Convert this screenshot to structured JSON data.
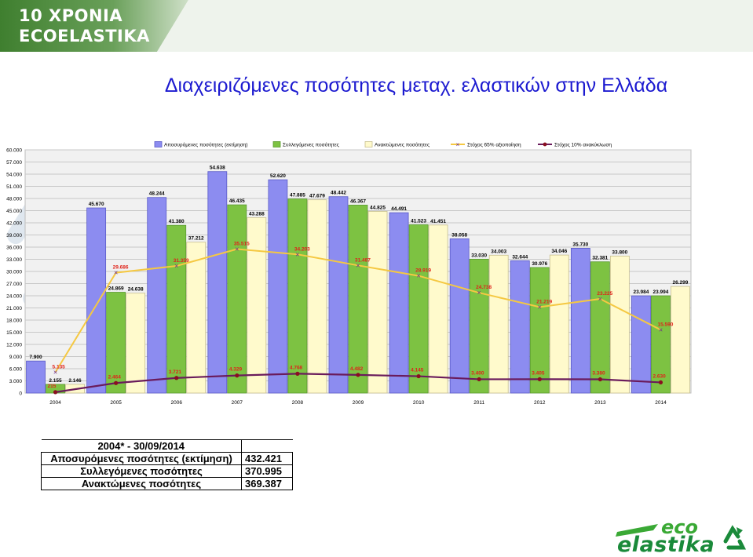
{
  "brand": {
    "line1": "10 ΧΡΟΝΙΑ",
    "line2": "ECOELASTIKA"
  },
  "title": "Διαχειριζόμενες ποσότητες μεταχ. ελαστικών στην Ελλάδα",
  "colors": {
    "placed": "#8c8cf0",
    "collected": "#7dc242",
    "recovered": "#fffacc",
    "target65": "#f5c842",
    "target10": "#6a1b5c",
    "title": "#1c1ad0",
    "banner": "#4a8a3a"
  },
  "chart_data": {
    "type": "bar",
    "categories": [
      "2004",
      "2005",
      "2006",
      "2007",
      "2008",
      "2009",
      "2010",
      "2011",
      "2012",
      "2013",
      "2014"
    ],
    "ylim": [
      0,
      60000
    ],
    "yticks": [
      "0",
      "3.000",
      "6.000",
      "9.000",
      "12.000",
      "15.000",
      "18.000",
      "21.000",
      "24.000",
      "27.000",
      "30.000",
      "33.000",
      "36.000",
      "39.000",
      "42.000",
      "45.000",
      "48.000",
      "51.000",
      "54.000",
      "57.000",
      "60.000"
    ],
    "grid": true,
    "legend": "top",
    "series": [
      {
        "name": "Αποσυρόμενες ποσότητες (εκτίμηση)",
        "kind": "bar",
        "values": [
          7900,
          45670,
          48244,
          54638,
          52620,
          48442,
          44491,
          38058,
          32644,
          35730,
          23984
        ],
        "labels": [
          "7.900",
          "45.670",
          "48.244",
          "54.638",
          "52.620",
          "48.442",
          "44.491",
          "38.058",
          "32.644",
          "35.730",
          "23.984"
        ]
      },
      {
        "name": "Συλλεγόμενες ποσότητες",
        "kind": "bar",
        "values": [
          2155,
          24869,
          41380,
          46435,
          47885,
          46367,
          41523,
          33030,
          30976,
          32381,
          23994
        ],
        "labels": [
          "2.155",
          "24.869",
          "41.380",
          "46.435",
          "47.885",
          "46.367",
          "41.523",
          "33.030",
          "30.976",
          "32.381",
          "23.994"
        ]
      },
      {
        "name": "Ανακτώμενες ποσότητες",
        "kind": "bar",
        "values": [
          2146,
          24638,
          37212,
          43288,
          47679,
          44825,
          41451,
          34003,
          34046,
          33800,
          26299
        ],
        "labels": [
          "2.146",
          "24.638",
          "37.212",
          "43.288",
          "47.679",
          "44.825",
          "41.451",
          "34.003",
          "34.046",
          "33.800",
          "26.299"
        ]
      },
      {
        "name": "Στόχος 65% αξιοποίηση",
        "kind": "line",
        "values": [
          5135,
          29686,
          31359,
          35515,
          34203,
          31487,
          28919,
          24738,
          21219,
          23225,
          15590
        ],
        "labels": [
          "5.135",
          "29.686",
          "31.359",
          "35.515",
          "34.203",
          "31.487",
          "28.919",
          "24.738",
          "21.219",
          "23.225",
          "15.590"
        ]
      },
      {
        "name": "Στόχος 10% ανακύκλωση",
        "kind": "line",
        "values": [
          215,
          2464,
          3721,
          4329,
          4768,
          4482,
          4145,
          3400,
          3405,
          3380,
          2630
        ],
        "labels": [
          "215",
          "2.464",
          "3.721",
          "4.329",
          "4.768",
          "4.482",
          "4.145",
          "3.400",
          "3.405",
          "3.380",
          "2.630"
        ]
      }
    ]
  },
  "totals": {
    "header": "2004* - 30/09/2014",
    "rows": [
      {
        "label": "Αποσυρόμενες ποσότητες (εκτίμηση)",
        "value": "432.421"
      },
      {
        "label": "Συλλεγόμενες ποσότητες",
        "value": "370.995"
      },
      {
        "label": "Ανακτώμενες ποσότητες",
        "value": "369.387"
      }
    ]
  },
  "logo": {
    "top": "eco",
    "bottom": "elastika"
  },
  "icons": {
    "background": "recycle-icon",
    "logo": "recycle-icon"
  }
}
